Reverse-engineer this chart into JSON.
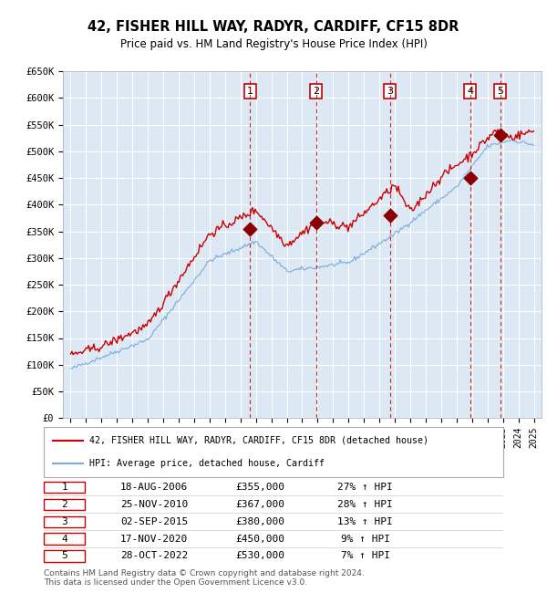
{
  "title": "42, FISHER HILL WAY, RADYR, CARDIFF, CF15 8DR",
  "subtitle": "Price paid vs. HM Land Registry's House Price Index (HPI)",
  "plot_bg_color": "#dce9f5",
  "red_line_color": "#cc0000",
  "blue_line_color": "#7aabdb",
  "grid_color": "#ffffff",
  "ylim": [
    0,
    650000
  ],
  "yticks": [
    0,
    50000,
    100000,
    150000,
    200000,
    250000,
    300000,
    350000,
    400000,
    450000,
    500000,
    550000,
    600000,
    650000
  ],
  "ytick_labels": [
    "£0",
    "£50K",
    "£100K",
    "£150K",
    "£200K",
    "£250K",
    "£300K",
    "£350K",
    "£400K",
    "£450K",
    "£500K",
    "£550K",
    "£600K",
    "£650K"
  ],
  "xlim_start": 1994.5,
  "xlim_end": 2025.5,
  "sale_dates": [
    2006.633,
    2010.9,
    2015.675,
    2020.883,
    2022.825
  ],
  "sale_prices": [
    355000,
    367000,
    380000,
    450000,
    530000
  ],
  "sale_labels": [
    "1",
    "2",
    "3",
    "4",
    "5"
  ],
  "legend_red": "42, FISHER HILL WAY, RADYR, CARDIFF, CF15 8DR (detached house)",
  "legend_blue": "HPI: Average price, detached house, Cardiff",
  "table_rows": [
    [
      "1",
      "18-AUG-2006",
      "£355,000",
      "27% ↑ HPI"
    ],
    [
      "2",
      "25-NOV-2010",
      "£367,000",
      "28% ↑ HPI"
    ],
    [
      "3",
      "02-SEP-2015",
      "£380,000",
      "13% ↑ HPI"
    ],
    [
      "4",
      "17-NOV-2020",
      "£450,000",
      "9% ↑ HPI"
    ],
    [
      "5",
      "28-OCT-2022",
      "£530,000",
      "7% ↑ HPI"
    ]
  ],
  "footer": "Contains HM Land Registry data © Crown copyright and database right 2024.\nThis data is licensed under the Open Government Licence v3.0."
}
